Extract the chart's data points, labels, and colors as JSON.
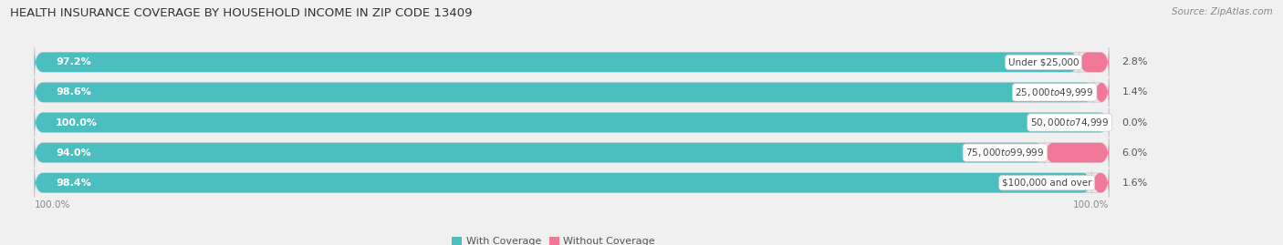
{
  "title": "HEALTH INSURANCE COVERAGE BY HOUSEHOLD INCOME IN ZIP CODE 13409",
  "source": "Source: ZipAtlas.com",
  "categories": [
    "Under $25,000",
    "$25,000 to $49,999",
    "$50,000 to $74,999",
    "$75,000 to $99,999",
    "$100,000 and over"
  ],
  "with_coverage": [
    97.2,
    98.6,
    100.0,
    94.0,
    98.4
  ],
  "without_coverage": [
    2.8,
    1.4,
    0.0,
    6.0,
    1.6
  ],
  "color_with": "#4BBFC0",
  "color_without": "#F07898",
  "color_without_light": "#F8B8CC",
  "bg_color": "#F0F0F0",
  "bar_bg": "#E8E8EC",
  "bar_border": "#D0D0D8",
  "title_fontsize": 9.5,
  "label_fontsize": 8.0,
  "cat_fontsize": 7.5,
  "tick_fontsize": 7.5,
  "legend_fontsize": 8.0,
  "bar_height": 0.65,
  "total": 100.0,
  "xlim_left": -2,
  "xlim_right": 115
}
